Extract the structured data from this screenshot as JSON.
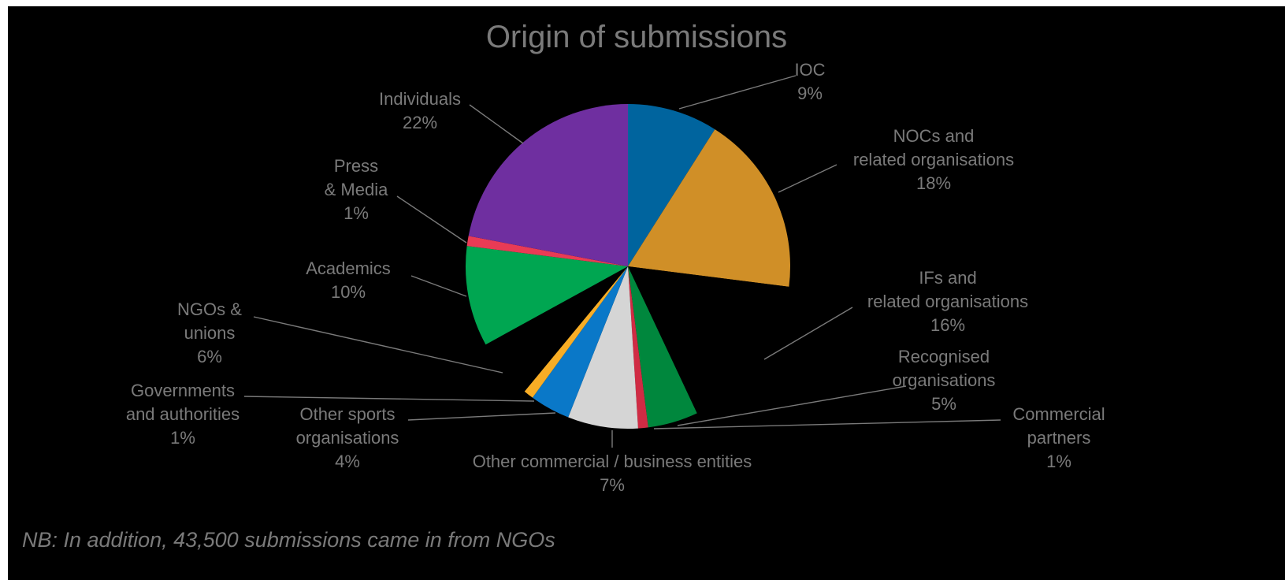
{
  "chart_data": {
    "type": "pie",
    "title": "Origin of submissions",
    "start_angle": "12 o'clock, clockwise",
    "slices": [
      {
        "label_lines": [
          "IOC"
        ],
        "value": 9,
        "pct_text": "9%",
        "color": "#00649e",
        "exploded": false
      },
      {
        "label_lines": [
          "NOCs and",
          "related organisations"
        ],
        "value": 18,
        "pct_text": "18%",
        "color": "#d08f27",
        "exploded": false
      },
      {
        "label_lines": [
          "IFs and",
          "related organisations"
        ],
        "value": 16,
        "pct_text": "16%",
        "color": "#000000",
        "exploded": false
      },
      {
        "label_lines": [
          "Recognised",
          "organisations"
        ],
        "value": 5,
        "pct_text": "5%",
        "color": "#00873d",
        "exploded": false
      },
      {
        "label_lines": [
          "Commercial",
          "partners"
        ],
        "value": 1,
        "pct_text": "1%",
        "color": "#d02b44",
        "exploded": false
      },
      {
        "label_lines": [
          "Other commercial / business entities"
        ],
        "value": 7,
        "pct_text": "7%",
        "color": "#d5d5d5",
        "exploded": false
      },
      {
        "label_lines": [
          "Other sports",
          "organisations"
        ],
        "value": 4,
        "pct_text": "4%",
        "color": "#0a78c8",
        "exploded": false
      },
      {
        "label_lines": [
          "Governments",
          "and authorities"
        ],
        "value": 1,
        "pct_text": "1%",
        "color": "#f8ad25",
        "exploded": false
      },
      {
        "label_lines": [
          "NGOs &",
          "unions"
        ],
        "value": 6,
        "pct_text": "6%",
        "color": "#000000",
        "exploded": false
      },
      {
        "label_lines": [
          "Academics"
        ],
        "value": 10,
        "pct_text": "10%",
        "color": "#00a651",
        "exploded": false
      },
      {
        "label_lines": [
          "Press",
          "& Media"
        ],
        "value": 1,
        "pct_text": "1%",
        "color": "#e93b55",
        "exploded": false
      },
      {
        "label_lines": [
          "Individuals"
        ],
        "value": 22,
        "pct_text": "22%",
        "color": "#6f2fa0",
        "exploded": false
      }
    ],
    "note": "NB: In addition, 43,500 submissions came in from NGOs"
  }
}
